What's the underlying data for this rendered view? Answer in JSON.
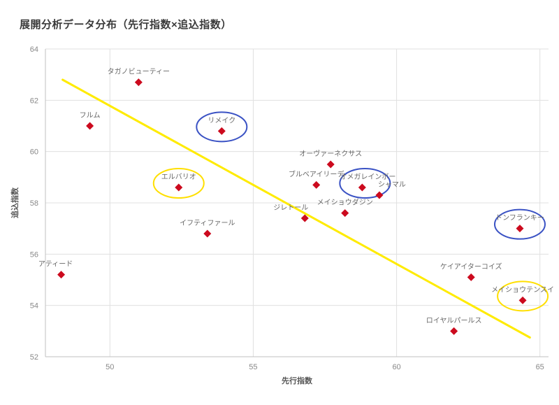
{
  "title": "展開分析データ分布（先行指数×追込指数）",
  "chart_data": {
    "type": "scatter",
    "title": "展開分析データ分布（先行指数×追込指数）",
    "xlabel": "先行指数",
    "ylabel": "追込指数",
    "xlim": [
      47.75,
      65.3
    ],
    "ylim": [
      52,
      64
    ],
    "x_ticks": [
      50,
      55,
      60,
      65
    ],
    "y_ticks": [
      52,
      54,
      56,
      58,
      60,
      62,
      64
    ],
    "grid": true,
    "marker_color": "#cc0a1e",
    "grid_color": "#e0e0e0",
    "axis_color": "#c0c0c0",
    "tick_label_color": "#888888",
    "point_label_color": "#666666",
    "highlight_colors": {
      "blue": "#3a52c4",
      "yellow": "#ffdf00"
    },
    "trend_line": {
      "color": "#ffeb00",
      "x1": 48.35,
      "y1": 62.8,
      "x2": 64.65,
      "y2": 52.75
    },
    "points": [
      {
        "label": "タガノビューティー",
        "x": 51.0,
        "y": 62.7
      },
      {
        "label": "フルム",
        "x": 49.3,
        "y": 61.0
      },
      {
        "label": "リメイク",
        "x": 53.9,
        "y": 60.8,
        "highlight": "blue"
      },
      {
        "label": "オーヴァーネクサス",
        "x": 57.7,
        "y": 59.5
      },
      {
        "label": "ブルベアイリーデ",
        "x": 57.2,
        "y": 58.7
      },
      {
        "label": "オメガレインボー",
        "x": 58.8,
        "y": 58.6,
        "highlight": "blue",
        "label_dx": 8
      },
      {
        "label": "シャマル",
        "x": 59.4,
        "y": 58.3,
        "label_dx": 18
      },
      {
        "label": "エルバリオ",
        "x": 52.4,
        "y": 58.6,
        "highlight": "yellow"
      },
      {
        "label": "ジレトール",
        "x": 56.8,
        "y": 57.4,
        "label_dx": -20
      },
      {
        "label": "メイショウダジン",
        "x": 58.2,
        "y": 57.6
      },
      {
        "label": "イフティファール",
        "x": 53.4,
        "y": 56.8
      },
      {
        "label": "アティード",
        "x": 48.3,
        "y": 55.2,
        "label_dx": -8
      },
      {
        "label": "ドンフランキー",
        "x": 64.3,
        "y": 57.0,
        "highlight": "blue"
      },
      {
        "label": "ケイアイターコイズ",
        "x": 62.6,
        "y": 55.1
      },
      {
        "label": "メイショウテンスイ",
        "x": 64.4,
        "y": 54.2,
        "highlight": "yellow"
      },
      {
        "label": "ロイヤルパールス",
        "x": 62.0,
        "y": 53.0
      }
    ]
  }
}
